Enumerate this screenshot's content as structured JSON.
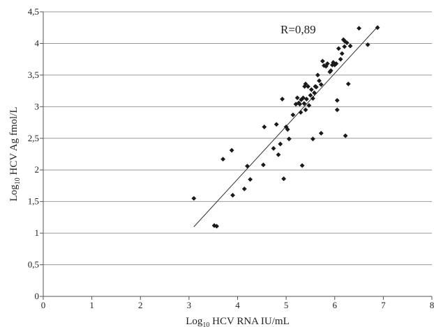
{
  "chart_data": {
    "type": "scatter",
    "title": "",
    "xlabel": {
      "prefix": "Log",
      "sub": "10",
      "rest": " HCV RNA IU/mL"
    },
    "ylabel": {
      "prefix": "Log",
      "sub": "10",
      "rest": " HCV Ag fmol/L"
    },
    "xlim": [
      0,
      8
    ],
    "ylim": [
      0,
      4.5
    ],
    "x_ticks": [
      "0",
      "1",
      "2",
      "3",
      "4",
      "5",
      "6",
      "7",
      "8"
    ],
    "y_ticks": [
      "0",
      "0,5",
      "1",
      "1,5",
      "2",
      "2,5",
      "3",
      "3,5",
      "4",
      "4,5"
    ],
    "grid": "horizontal",
    "annotation": "R=0,89",
    "marker_color": "#1a1a1a",
    "line_color": "#333333",
    "trendline": {
      "x": [
        3.1,
        6.9
      ],
      "y": [
        1.1,
        4.28
      ]
    },
    "points": [
      [
        3.1,
        1.55
      ],
      [
        3.52,
        1.12
      ],
      [
        3.57,
        1.11
      ],
      [
        3.7,
        2.17
      ],
      [
        3.88,
        2.31
      ],
      [
        3.9,
        1.6
      ],
      [
        4.14,
        1.7
      ],
      [
        4.2,
        2.06
      ],
      [
        4.26,
        1.85
      ],
      [
        4.53,
        2.08
      ],
      [
        4.55,
        2.68
      ],
      [
        4.74,
        2.34
      ],
      [
        4.8,
        2.72
      ],
      [
        4.84,
        2.24
      ],
      [
        4.88,
        2.41
      ],
      [
        4.92,
        3.12
      ],
      [
        4.95,
        1.86
      ],
      [
        5.0,
        2.68
      ],
      [
        5.03,
        2.64
      ],
      [
        5.06,
        2.49
      ],
      [
        5.14,
        2.87
      ],
      [
        5.2,
        3.04
      ],
      [
        5.23,
        3.14
      ],
      [
        5.26,
        3.06
      ],
      [
        5.3,
        2.91
      ],
      [
        5.31,
        3.11
      ],
      [
        5.33,
        2.07
      ],
      [
        5.35,
        3.14
      ],
      [
        5.37,
        3.05
      ],
      [
        5.4,
        2.95
      ],
      [
        5.4,
        3.36
      ],
      [
        5.42,
        3.12
      ],
      [
        5.45,
        3.32
      ],
      [
        5.47,
        3.02
      ],
      [
        5.5,
        3.18
      ],
      [
        5.52,
        3.27
      ],
      [
        5.55,
        3.13
      ],
      [
        5.55,
        2.49
      ],
      [
        5.58,
        3.22
      ],
      [
        5.6,
        3.32
      ],
      [
        5.62,
        3.31
      ],
      [
        5.65,
        3.5
      ],
      [
        5.68,
        3.41
      ],
      [
        5.72,
        3.35
      ],
      [
        5.72,
        2.58
      ],
      [
        5.75,
        3.72
      ],
      [
        5.78,
        3.65
      ],
      [
        5.82,
        3.64
      ],
      [
        5.85,
        3.68
      ],
      [
        5.9,
        3.55
      ],
      [
        5.92,
        3.57
      ],
      [
        5.95,
        3.66
      ],
      [
        5.97,
        3.7
      ],
      [
        6.0,
        3.66
      ],
      [
        6.03,
        3.68
      ],
      [
        6.05,
        3.1
      ],
      [
        6.05,
        2.95
      ],
      [
        6.08,
        3.92
      ],
      [
        6.12,
        3.75
      ],
      [
        6.15,
        3.84
      ],
      [
        6.18,
        4.06
      ],
      [
        6.2,
        4.04
      ],
      [
        6.2,
        3.95
      ],
      [
        6.22,
        2.54
      ],
      [
        6.25,
        4.01
      ],
      [
        6.28,
        3.36
      ],
      [
        6.32,
        3.96
      ],
      [
        6.5,
        4.24
      ],
      [
        6.68,
        3.98
      ],
      [
        6.88,
        4.25
      ],
      [
        5.38,
        3.32
      ],
      [
        5.28,
        3.04
      ]
    ]
  }
}
